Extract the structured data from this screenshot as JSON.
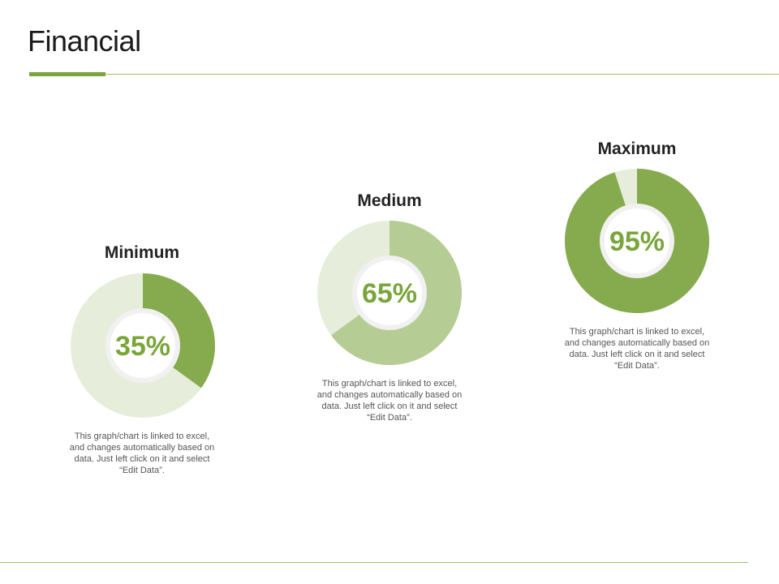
{
  "page": {
    "title": "Financial"
  },
  "colors": {
    "accent": "#7aa53a",
    "rule": "#9dbf6c",
    "track": "#e6eedb",
    "pct_text": "#7aa53a"
  },
  "chart_data": [
    {
      "type": "pie",
      "title": "Minimum",
      "values": [
        35,
        65
      ],
      "label": "35%",
      "fill_color": "#86ab4e",
      "description": "This graph/chart is linked to excel, and changes automatically based on data. Just left click on it and select “Edit Data”."
    },
    {
      "type": "pie",
      "title": "Medium",
      "values": [
        65,
        35
      ],
      "label": "65%",
      "fill_color": "#b5cd94",
      "description": "This graph/chart is linked to excel, and changes automatically based on data. Just left click on it and select “Edit Data”."
    },
    {
      "type": "pie",
      "title": "Maximum",
      "values": [
        95,
        5
      ],
      "label": "95%",
      "fill_color": "#86ab4e",
      "description": "This graph/chart is linked to excel, and changes automatically based on data. Just left click on it and select “Edit Data”."
    }
  ]
}
